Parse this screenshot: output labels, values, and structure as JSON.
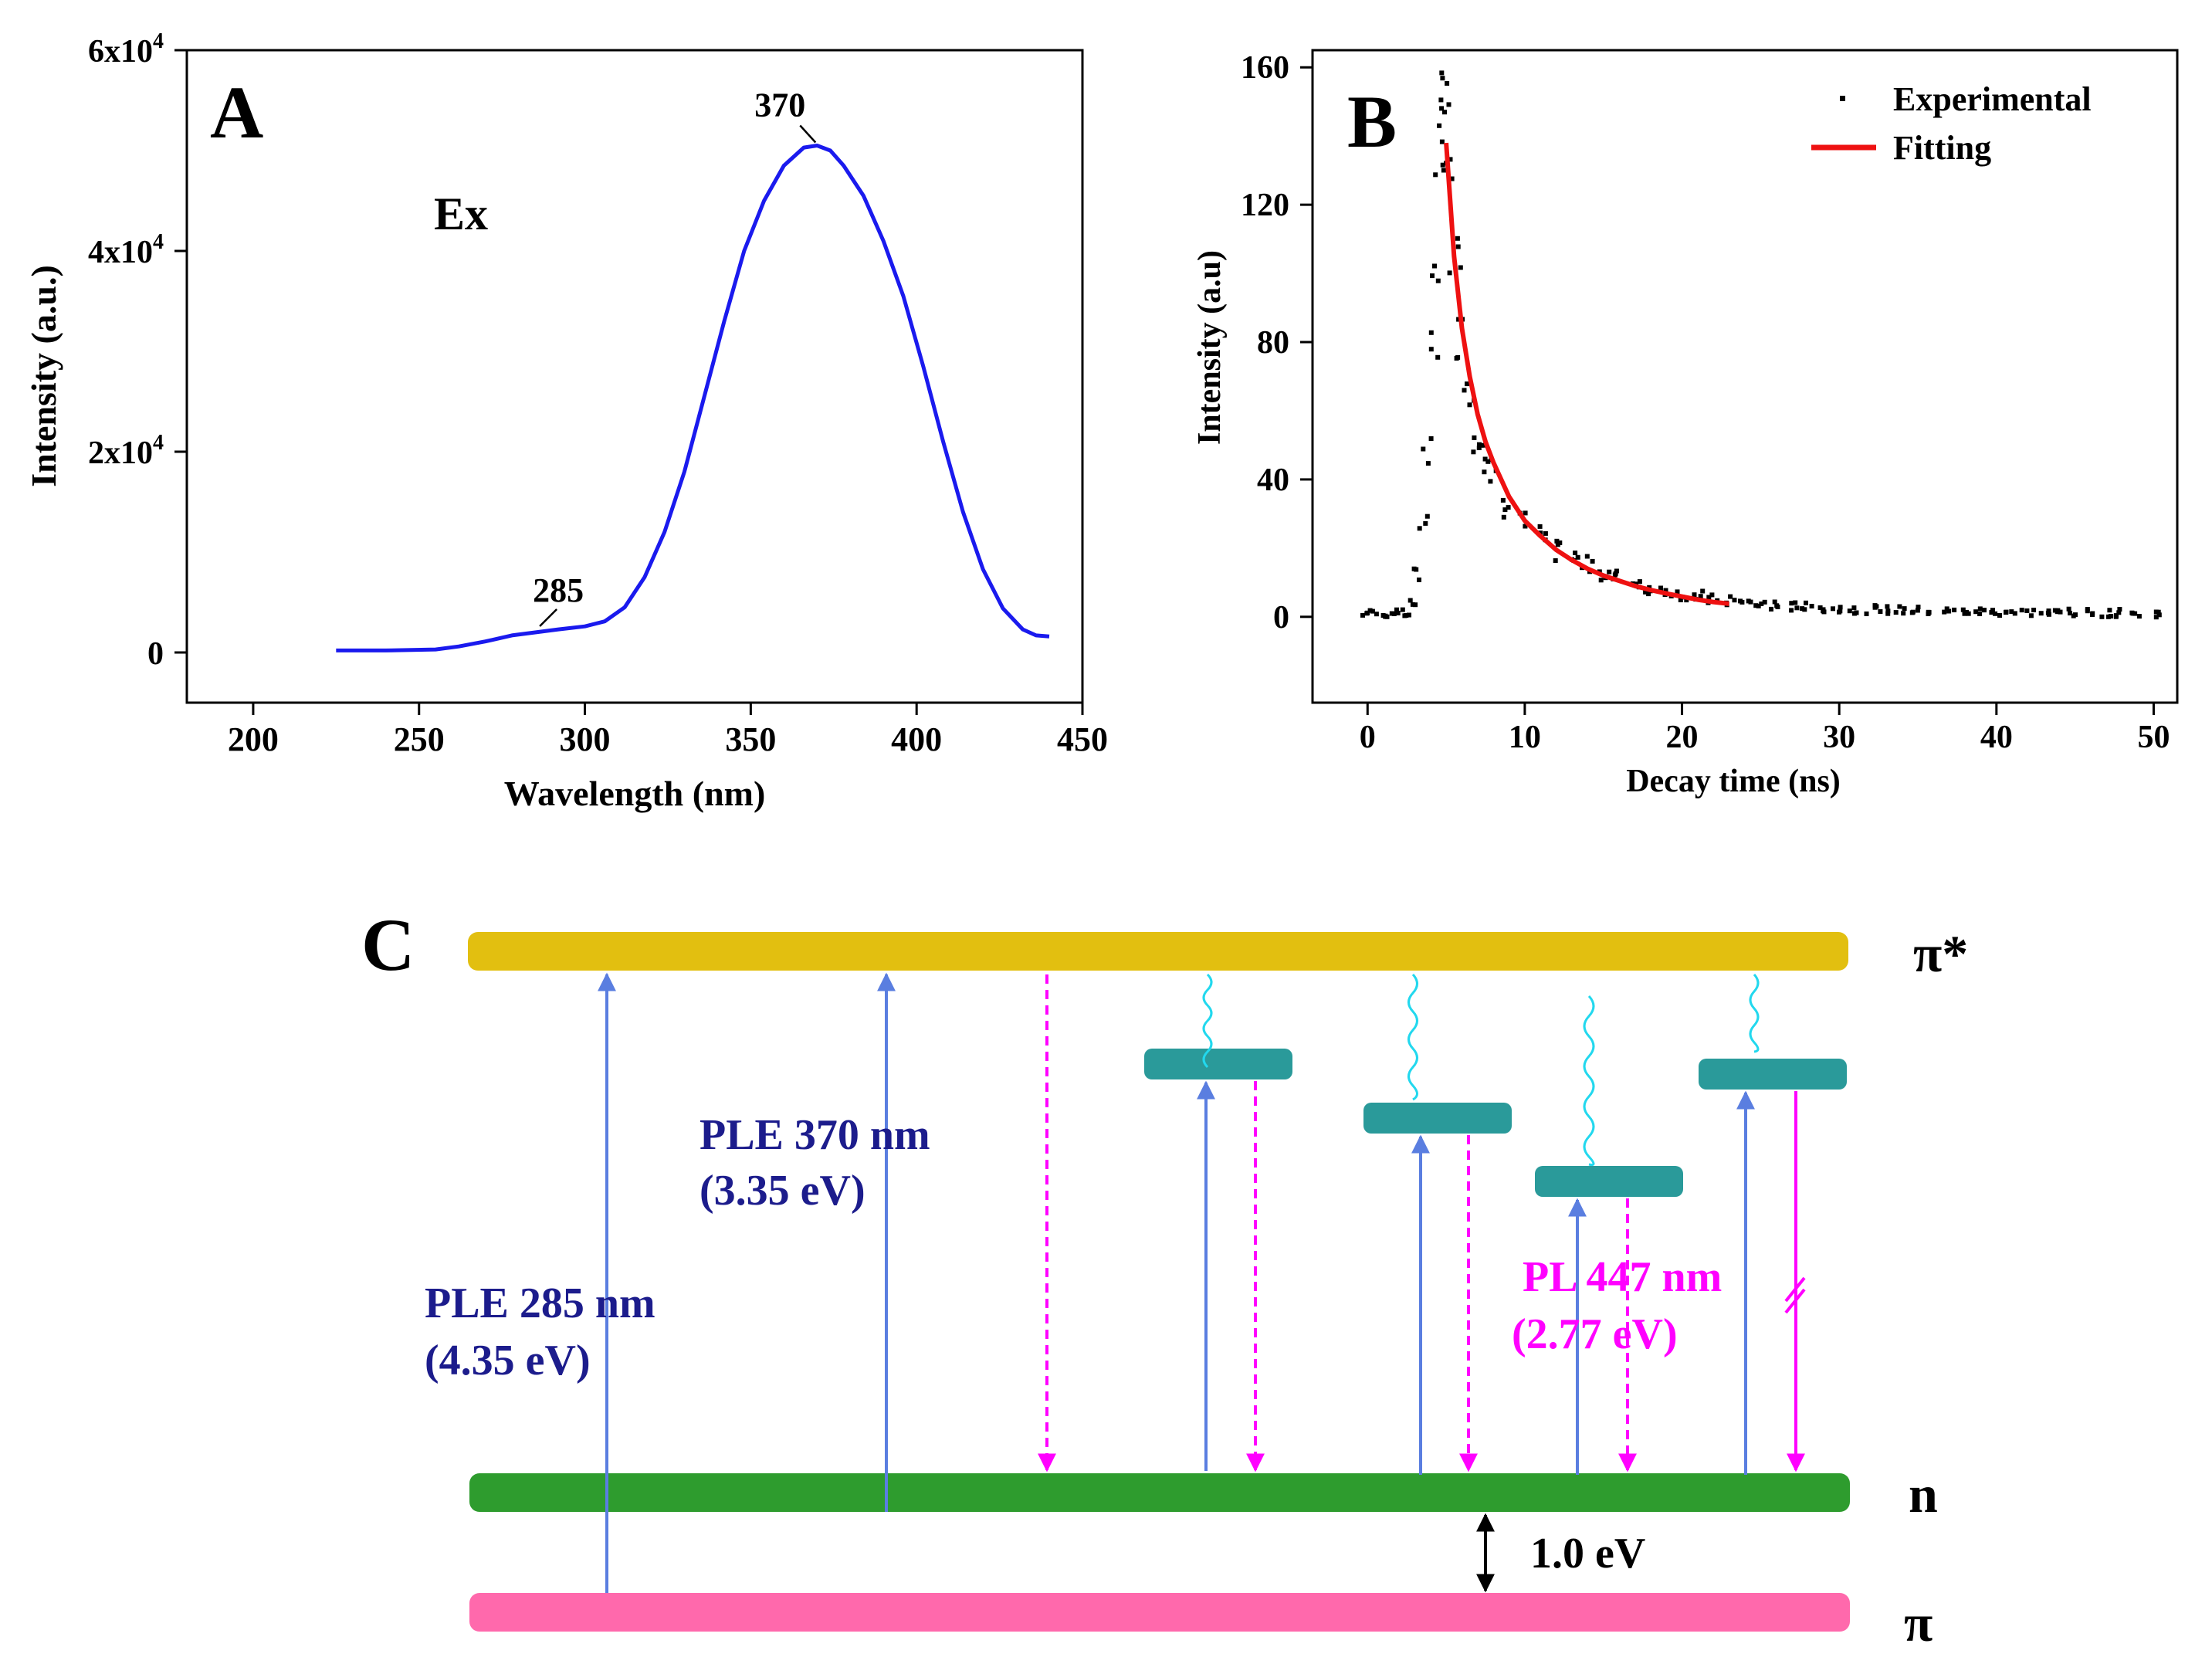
{
  "colors": {
    "excitation_line": "#1a1aee",
    "experimental_points": "#000000",
    "fitting_line": "#ee1111",
    "level_pi_star": "#e2bf10",
    "level_n": "#2e9c2e",
    "level_pi": "#ff69ac",
    "trap_level": "#2a9a9a",
    "up_arrow": "#5a7ee0",
    "pl_arrow": "#ff00ff",
    "wavy_arrow": "#22d8ee",
    "ple_text": "#1c1c8c",
    "pl_text": "#ff00ff"
  },
  "chart_data": [
    {
      "panel": "A",
      "type": "line",
      "panel_label": "A",
      "annotation": "Ex",
      "xlabel": "Wavelength (nm)",
      "ylabel": "Intensity (a.u.)",
      "xlim": [
        180,
        450
      ],
      "ylim": [
        -5000,
        60000
      ],
      "xticks": [
        200,
        250,
        300,
        350,
        400,
        450
      ],
      "yticks": [
        {
          "value": 0,
          "base": "0",
          "exp": ""
        },
        {
          "value": 20000,
          "base": "2x10",
          "exp": "4"
        },
        {
          "value": 40000,
          "base": "4x10",
          "exp": "4"
        },
        {
          "value": 60000,
          "base": "6x10",
          "exp": "4"
        }
      ],
      "series": [
        {
          "name": "Ex",
          "x": [
            225,
            240,
            255,
            262,
            270,
            278,
            285,
            292,
            300,
            306,
            312,
            318,
            324,
            330,
            336,
            342,
            348,
            354,
            360,
            366,
            370,
            374,
            378,
            384,
            390,
            396,
            402,
            408,
            414,
            420,
            426,
            432,
            436,
            440
          ],
          "y": [
            200,
            200,
            300,
            600,
            1100,
            1700,
            2000,
            2300,
            2600,
            3100,
            4500,
            7500,
            12000,
            18000,
            25500,
            33000,
            40000,
            45000,
            48500,
            50300,
            50500,
            50000,
            48500,
            45500,
            41000,
            35500,
            28500,
            21000,
            14000,
            8300,
            4400,
            2300,
            1700,
            1600
          ]
        }
      ],
      "peak_labels": [
        {
          "x": 370,
          "y": 50500,
          "text": "370"
        },
        {
          "x": 285,
          "y": 2000,
          "text": "285"
        }
      ]
    },
    {
      "panel": "B",
      "type": "scatter",
      "panel_label": "B",
      "xlabel": "Decay time (ns)",
      "ylabel": "Intensity (a.u)",
      "xlim": [
        -3.5,
        51.5
      ],
      "ylim": [
        -25,
        165
      ],
      "xticks": [
        0,
        10,
        20,
        30,
        40,
        50
      ],
      "yticks": [
        0,
        40,
        80,
        120,
        160
      ],
      "legend": {
        "position": "top-right",
        "entries": [
          "Experimental",
          "Fitting"
        ]
      },
      "series": [
        {
          "name": "Experimental",
          "kind": "points",
          "x": [
            0,
            0.5,
            1,
            1.5,
            2,
            2.5,
            3,
            3.3,
            3.6,
            3.9,
            4.1,
            4.3,
            4.5,
            4.7,
            4.9,
            5.1,
            5.3,
            5.6,
            6,
            6.5,
            7,
            7.5,
            8,
            9,
            10,
            11,
            12,
            13,
            14,
            15,
            16,
            17,
            18,
            19,
            20,
            21,
            22,
            23,
            24,
            25,
            26,
            27,
            28,
            29,
            30,
            31,
            32,
            33,
            34,
            35,
            36,
            37,
            38,
            39,
            40,
            41,
            42,
            43,
            44,
            45,
            46,
            47,
            48,
            49,
            50
          ],
          "y": [
            1,
            1,
            1,
            1,
            1,
            1,
            4,
            12,
            28,
            50,
            78,
            103,
            125,
            145,
            152,
            150,
            128,
            105,
            82,
            68,
            55,
            47,
            41,
            33,
            27,
            23,
            19,
            17,
            15,
            13,
            11.5,
            10,
            8.5,
            7.5,
            6.5,
            6,
            5,
            4.5,
            4,
            3.6,
            3.2,
            3,
            2.8,
            2.6,
            2.4,
            2.2,
            2.1,
            2,
            1.9,
            1.8,
            1.7,
            1.6,
            1.5,
            1.5,
            1.4,
            1.4,
            1.3,
            1.3,
            1.2,
            1.2,
            1.2,
            1.1,
            1.1,
            1,
            1
          ]
        },
        {
          "name": "Fitting",
          "kind": "line",
          "x": [
            5,
            5.5,
            6,
            6.5,
            7,
            7.5,
            8,
            9,
            10,
            11,
            12,
            13,
            14,
            15,
            16,
            17,
            18,
            19,
            20,
            21,
            22,
            23
          ],
          "y": [
            138,
            105,
            84,
            70,
            59,
            51,
            45,
            35,
            28,
            23.5,
            19.5,
            16.5,
            14,
            12,
            10.5,
            9,
            7.8,
            6.8,
            5.9,
            5,
            4.3,
            3.8
          ]
        }
      ]
    }
  ],
  "diagram": {
    "panel_label": "C",
    "levels": {
      "pi_star": "π*",
      "n": "n",
      "pi": "π"
    },
    "transitions": {
      "ple285": {
        "line1": "PLE 285 nm",
        "line2": "(4.35 eV)"
      },
      "ple370": {
        "line1": "PLE 370 nm",
        "line2": "(3.35 eV)"
      },
      "pl447": {
        "line1": "PL 447 nm",
        "line2": "(2.77 eV)"
      },
      "gap": "1.0 eV"
    }
  }
}
